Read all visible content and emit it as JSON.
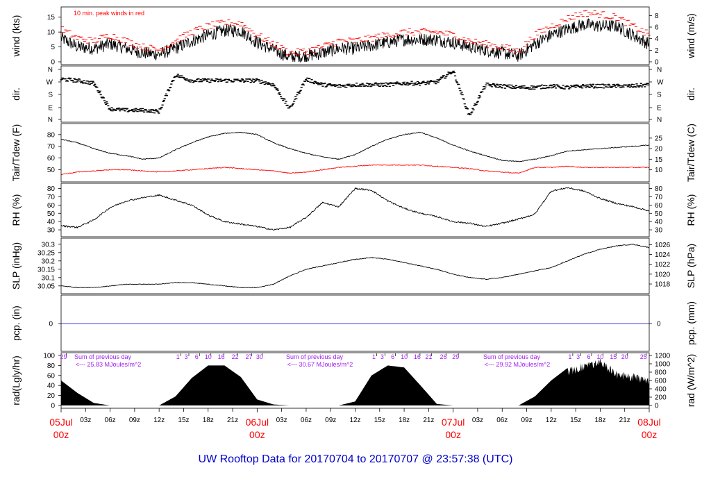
{
  "footer": {
    "title": "UW Rooftop Data for 20170704  to  20170707 @ 23:57:38  (UTC)"
  },
  "colors": {
    "primary": "#000000",
    "peak": "#ff0000",
    "precip": "#0000cc",
    "annotation": "#a020f0",
    "date": "#ff0000",
    "footer": "#0000cc"
  },
  "chart_data": [
    {
      "type": "line",
      "panel": "wind",
      "ylabel_left": "wind (kts)",
      "ylabel_right": "wind (m/s)",
      "ylim": [
        0,
        17.5
      ],
      "yticks_left": [
        0,
        5,
        10,
        15
      ],
      "yticks_right": [
        0,
        2,
        4,
        6,
        8
      ],
      "annotation": "10 min. peak winds in red",
      "x_hours": [
        0,
        2,
        4,
        6,
        8,
        10,
        12,
        14,
        16,
        18,
        20,
        22,
        24,
        26,
        28,
        30,
        32,
        34,
        36,
        38,
        40,
        42,
        44,
        46,
        48,
        50,
        52,
        54,
        56,
        58,
        60,
        62,
        64,
        66,
        68,
        70,
        72
      ],
      "series": [
        {
          "name": "wind",
          "values": [
            8,
            5,
            4.5,
            6,
            4.5,
            3,
            2.5,
            4.5,
            7,
            9,
            10.5,
            10.5,
            6.5,
            4,
            1.5,
            2,
            3,
            4.5,
            4.5,
            5.5,
            6.5,
            7.5,
            7.5,
            7.5,
            6.5,
            5,
            4,
            3,
            2,
            6,
            9,
            11,
            12.5,
            12,
            12,
            9,
            6
          ]
        },
        {
          "name": "peak",
          "values": [
            11,
            8,
            7,
            9,
            7,
            5,
            4,
            7,
            10,
            12,
            13,
            13,
            9,
            6,
            3,
            3.5,
            5,
            7,
            7,
            8,
            9,
            10,
            10,
            10,
            9,
            7,
            6,
            5,
            3.5,
            9,
            12,
            14.5,
            16.5,
            16,
            15,
            12,
            9
          ]
        }
      ]
    },
    {
      "type": "scatter",
      "panel": "direction",
      "ylabel_left": "dir.",
      "ylabel_right": "dir.",
      "yticks_left": [
        "N",
        "W",
        "S",
        "E",
        "N"
      ],
      "yticks_right": [
        "N",
        "W",
        "S",
        "E",
        "N"
      ],
      "x_hours": [
        0,
        2,
        4,
        6,
        8,
        10,
        12,
        14,
        16,
        18,
        20,
        22,
        24,
        26,
        28,
        30,
        32,
        34,
        36,
        38,
        40,
        42,
        44,
        46,
        48,
        50,
        52,
        54,
        56,
        58,
        60,
        62,
        64,
        66,
        68,
        70,
        72
      ],
      "series": [
        {
          "name": "direction",
          "values": [
            290,
            280,
            260,
            80,
            70,
            70,
            60,
            320,
            280,
            280,
            280,
            280,
            280,
            250,
            80,
            290,
            250,
            240,
            250,
            250,
            250,
            260,
            260,
            270,
            350,
            30,
            250,
            240,
            230,
            230,
            240,
            230,
            240,
            240,
            240,
            240,
            250
          ]
        }
      ]
    },
    {
      "type": "line",
      "panel": "temperature",
      "ylabel_left": "Tair/Tdew (F)",
      "ylabel_right": "Tair/Tdew (C)",
      "ylim": [
        42,
        87
      ],
      "yticks_left": [
        50,
        60,
        70,
        80
      ],
      "yticks_right": [
        10,
        15,
        20,
        25
      ],
      "x_hours": [
        0,
        2,
        4,
        6,
        8,
        10,
        12,
        14,
        16,
        18,
        20,
        22,
        24,
        26,
        28,
        30,
        32,
        34,
        36,
        38,
        40,
        42,
        44,
        46,
        48,
        50,
        52,
        54,
        56,
        58,
        60,
        62,
        64,
        66,
        68,
        70,
        72
      ],
      "series": [
        {
          "name": "Tair",
          "values": [
            76,
            73,
            68,
            64,
            62,
            59,
            60,
            67,
            73,
            78,
            81,
            82,
            80,
            73,
            68,
            64,
            61,
            59,
            63,
            70,
            76,
            80,
            82,
            77,
            71,
            66,
            62,
            58,
            57,
            59,
            62,
            66,
            67,
            68,
            69,
            70,
            71
          ]
        },
        {
          "name": "Tdew",
          "values": [
            46,
            48,
            49,
            50,
            50,
            49,
            48,
            49,
            50,
            51,
            52,
            51,
            50,
            49,
            47,
            48,
            50,
            52,
            53,
            54,
            54,
            54,
            54,
            53,
            52,
            51,
            49,
            48,
            47,
            52,
            52,
            53,
            52,
            52,
            52,
            52,
            52
          ]
        }
      ]
    },
    {
      "type": "line",
      "panel": "relative_humidity",
      "ylabel_left": "RH (%)",
      "ylabel_right": "RH (%)",
      "ylim": [
        25,
        83
      ],
      "yticks_left": [
        30,
        40,
        50,
        60,
        70,
        80
      ],
      "yticks_right": [
        30,
        40,
        50,
        60,
        70,
        80
      ],
      "x_hours": [
        0,
        2,
        4,
        6,
        8,
        10,
        12,
        14,
        16,
        18,
        20,
        22,
        24,
        26,
        28,
        30,
        32,
        34,
        36,
        38,
        40,
        42,
        44,
        46,
        48,
        50,
        52,
        54,
        56,
        58,
        60,
        62,
        64,
        66,
        68,
        70,
        72
      ],
      "series": [
        {
          "name": "RH",
          "values": [
            35,
            33,
            42,
            57,
            65,
            69,
            72,
            66,
            60,
            48,
            40,
            37,
            34,
            30,
            33,
            45,
            63,
            58,
            80,
            78,
            65,
            56,
            50,
            46,
            40,
            38,
            34,
            38,
            43,
            49,
            77,
            81,
            77,
            68,
            62,
            58,
            53
          ]
        }
      ]
    },
    {
      "type": "line",
      "panel": "pressure",
      "ylabel_left": "SLP (inHg)",
      "ylabel_right": "SLP (hPa)",
      "ylim": [
        30.02,
        30.32
      ],
      "yticks_left": [
        30.05,
        30.1,
        30.15,
        30.2,
        30.25,
        30.3
      ],
      "yticks_right": [
        1018,
        1020,
        1022,
        1024,
        1026
      ],
      "x_hours": [
        0,
        2,
        4,
        6,
        8,
        10,
        12,
        14,
        16,
        18,
        20,
        22,
        24,
        26,
        28,
        30,
        32,
        34,
        36,
        38,
        40,
        42,
        44,
        46,
        48,
        50,
        52,
        54,
        56,
        58,
        60,
        62,
        64,
        66,
        68,
        70,
        72
      ],
      "series": [
        {
          "name": "SLP",
          "values": [
            30.05,
            30.04,
            30.04,
            30.05,
            30.06,
            30.06,
            30.06,
            30.07,
            30.07,
            30.06,
            30.05,
            30.04,
            30.04,
            30.06,
            30.11,
            30.15,
            30.17,
            30.19,
            30.21,
            30.22,
            30.21,
            30.19,
            30.17,
            30.15,
            30.12,
            30.1,
            30.09,
            30.1,
            30.12,
            30.14,
            30.16,
            30.2,
            30.24,
            30.27,
            30.29,
            30.3,
            30.28
          ]
        }
      ]
    },
    {
      "type": "line",
      "panel": "precipitation",
      "ylabel_left": "pcp. (in)",
      "ylabel_right": "pcp. (mm)",
      "yticks_left": [
        0
      ],
      "yticks_right": [
        0
      ],
      "x_hours": [
        0,
        72
      ],
      "series": [
        {
          "name": "precip",
          "values": [
            0,
            0
          ]
        }
      ]
    },
    {
      "type": "area",
      "panel": "radiation",
      "ylabel_left": "rad(Lgly/hr)",
      "ylabel_right": "rad (W/m^2)",
      "ylim": [
        0,
        100
      ],
      "yticks_left": [
        0,
        20,
        40,
        60,
        80,
        100
      ],
      "yticks_right": [
        0,
        200,
        400,
        600,
        800,
        1000,
        1200
      ],
      "x_hours": [
        0,
        2,
        4,
        6,
        8,
        10,
        12,
        14,
        16,
        18,
        20,
        22,
        24,
        26,
        28,
        30,
        32,
        34,
        36,
        38,
        40,
        42,
        44,
        46,
        48,
        50,
        52,
        54,
        56,
        58,
        60,
        62,
        64,
        66,
        68,
        70,
        72
      ],
      "series": [
        {
          "name": "radiation",
          "values": [
            50,
            25,
            5,
            0,
            0,
            0,
            0,
            18,
            55,
            80,
            80,
            57,
            12,
            2,
            0,
            0,
            0,
            0,
            8,
            60,
            80,
            76,
            40,
            3,
            0,
            0,
            0,
            0,
            0,
            18,
            50,
            75,
            88,
            95,
            70,
            65,
            60
          ]
        }
      ],
      "daily_sums": [
        {
          "heading": "Sum of previous day",
          "value": "<--- 25.83 MJoules/m^2"
        },
        {
          "heading": "Sum of previous day",
          "value": "<--- 30.67 MJoules/m^2"
        },
        {
          "heading": "Sum of previous day",
          "value": "<--- 29.92 MJoules/m^2"
        }
      ],
      "day_markers": [
        {
          "x_hour": 0.3,
          "label": "29"
        },
        {
          "x_hour": 14.3,
          "label": "1"
        },
        {
          "x_hour": 15.3,
          "label": "3"
        },
        {
          "x_hour": 16.6,
          "label": "6"
        },
        {
          "x_hour": 18,
          "label": "10"
        },
        {
          "x_hour": 19.6,
          "label": "16"
        },
        {
          "x_hour": 21.3,
          "label": "22"
        },
        {
          "x_hour": 23,
          "label": "27"
        },
        {
          "x_hour": 24.3,
          "label": "30"
        },
        {
          "x_hour": 38.3,
          "label": "1"
        },
        {
          "x_hour": 39.3,
          "label": "3"
        },
        {
          "x_hour": 40.6,
          "label": "6"
        },
        {
          "x_hour": 42,
          "label": "10"
        },
        {
          "x_hour": 43.6,
          "label": "16"
        },
        {
          "x_hour": 45,
          "label": "21"
        },
        {
          "x_hour": 46.8,
          "label": "26"
        },
        {
          "x_hour": 48.3,
          "label": "29"
        },
        {
          "x_hour": 62.3,
          "label": "1"
        },
        {
          "x_hour": 63.3,
          "label": "3"
        },
        {
          "x_hour": 64.6,
          "label": "6"
        },
        {
          "x_hour": 66,
          "label": "10"
        },
        {
          "x_hour": 67.6,
          "label": "15"
        },
        {
          "x_hour": 69,
          "label": "20"
        },
        {
          "x_hour": 71.3,
          "label": "25"
        }
      ]
    }
  ],
  "x_axis": {
    "ticks": [
      {
        "hour": 3,
        "label": "03z"
      },
      {
        "hour": 6,
        "label": "06z"
      },
      {
        "hour": 9,
        "label": "09z"
      },
      {
        "hour": 12,
        "label": "12z"
      },
      {
        "hour": 15,
        "label": "15z"
      },
      {
        "hour": 18,
        "label": "18z"
      },
      {
        "hour": 21,
        "label": "21z"
      },
      {
        "hour": 27,
        "label": "03z"
      },
      {
        "hour": 30,
        "label": "06z"
      },
      {
        "hour": 33,
        "label": "09z"
      },
      {
        "hour": 36,
        "label": "12z"
      },
      {
        "hour": 39,
        "label": "15z"
      },
      {
        "hour": 42,
        "label": "18z"
      },
      {
        "hour": 45,
        "label": "21z"
      },
      {
        "hour": 51,
        "label": "03z"
      },
      {
        "hour": 54,
        "label": "06z"
      },
      {
        "hour": 57,
        "label": "09z"
      },
      {
        "hour": 60,
        "label": "12z"
      },
      {
        "hour": 63,
        "label": "15z"
      },
      {
        "hour": 66,
        "label": "18z"
      },
      {
        "hour": 69,
        "label": "21z"
      }
    ],
    "dates": [
      {
        "hour": 0,
        "date": "05Jul",
        "time": "00z"
      },
      {
        "hour": 24,
        "date": "06Jul",
        "time": "00z"
      },
      {
        "hour": 48,
        "date": "07Jul",
        "time": "00z"
      },
      {
        "hour": 72,
        "date": "08Jul",
        "time": "00z"
      }
    ]
  }
}
